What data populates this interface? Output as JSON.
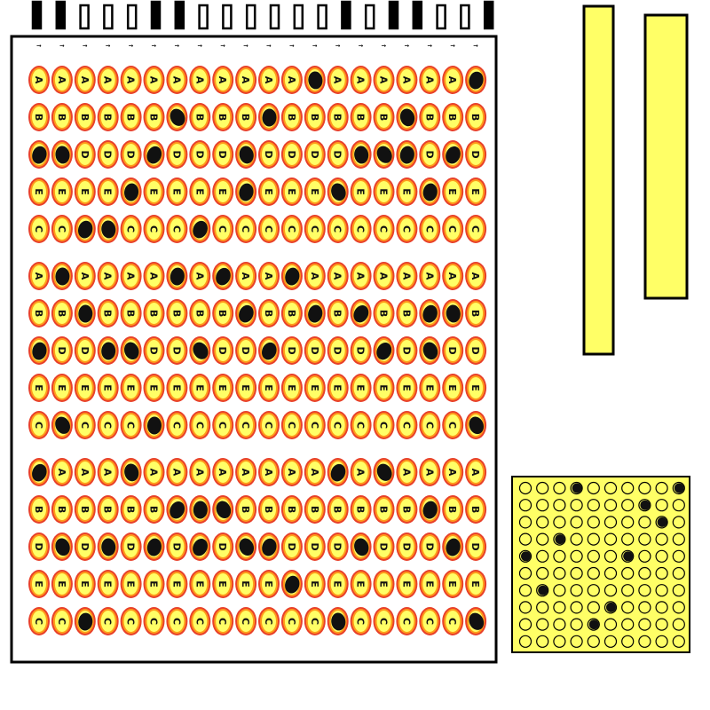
{
  "colors": {
    "background": "#ffffff",
    "frame": "#000000",
    "bubble_outer": "#e8412a",
    "bubble_ring": "#ff9a1a",
    "bubble_fill": "#ffff66",
    "strip_fill": "#ffff66",
    "grid_fill": "#ffff66",
    "mark": "#111111"
  },
  "timing_marks": {
    "count": 20,
    "filled": [
      true,
      true,
      false,
      false,
      false,
      true,
      true,
      false,
      false,
      false,
      false,
      false,
      false,
      true,
      false,
      true,
      true,
      false,
      false,
      true
    ]
  },
  "answer_sheet": {
    "column_arrow": "→",
    "column_count": 20,
    "row_letters": [
      "A",
      "B",
      "D",
      "E",
      "C",
      "A",
      "B",
      "D",
      "E",
      "C",
      "A",
      "B",
      "D",
      "E",
      "C"
    ],
    "marks": [
      [
        12,
        19
      ],
      [
        6,
        10,
        16
      ],
      [
        0,
        1,
        5,
        9,
        14,
        15,
        16,
        18
      ],
      [
        4,
        9,
        13,
        17
      ],
      [
        2,
        3,
        7
      ],
      [
        1,
        6,
        8,
        11
      ],
      [
        2,
        9,
        12,
        14,
        17,
        18
      ],
      [
        0,
        3,
        4,
        7,
        10,
        15,
        17
      ],
      [],
      [
        1,
        5,
        19
      ],
      [
        0,
        4,
        13,
        15
      ],
      [
        6,
        7,
        8,
        17
      ],
      [
        1,
        3,
        5,
        7,
        9,
        10,
        14,
        18
      ],
      [
        11
      ],
      [
        2,
        13,
        19
      ]
    ]
  },
  "side_strips": [
    {
      "id": "strip-left"
    },
    {
      "id": "strip-right"
    }
  ],
  "small_grid": {
    "rows": 10,
    "cols": 10,
    "marks": [
      [
        0,
        3
      ],
      [
        0,
        9
      ],
      [
        1,
        7
      ],
      [
        2,
        8
      ],
      [
        3,
        2
      ],
      [
        4,
        0
      ],
      [
        4,
        6
      ],
      [
        6,
        1
      ],
      [
        7,
        5
      ],
      [
        8,
        4
      ]
    ]
  }
}
